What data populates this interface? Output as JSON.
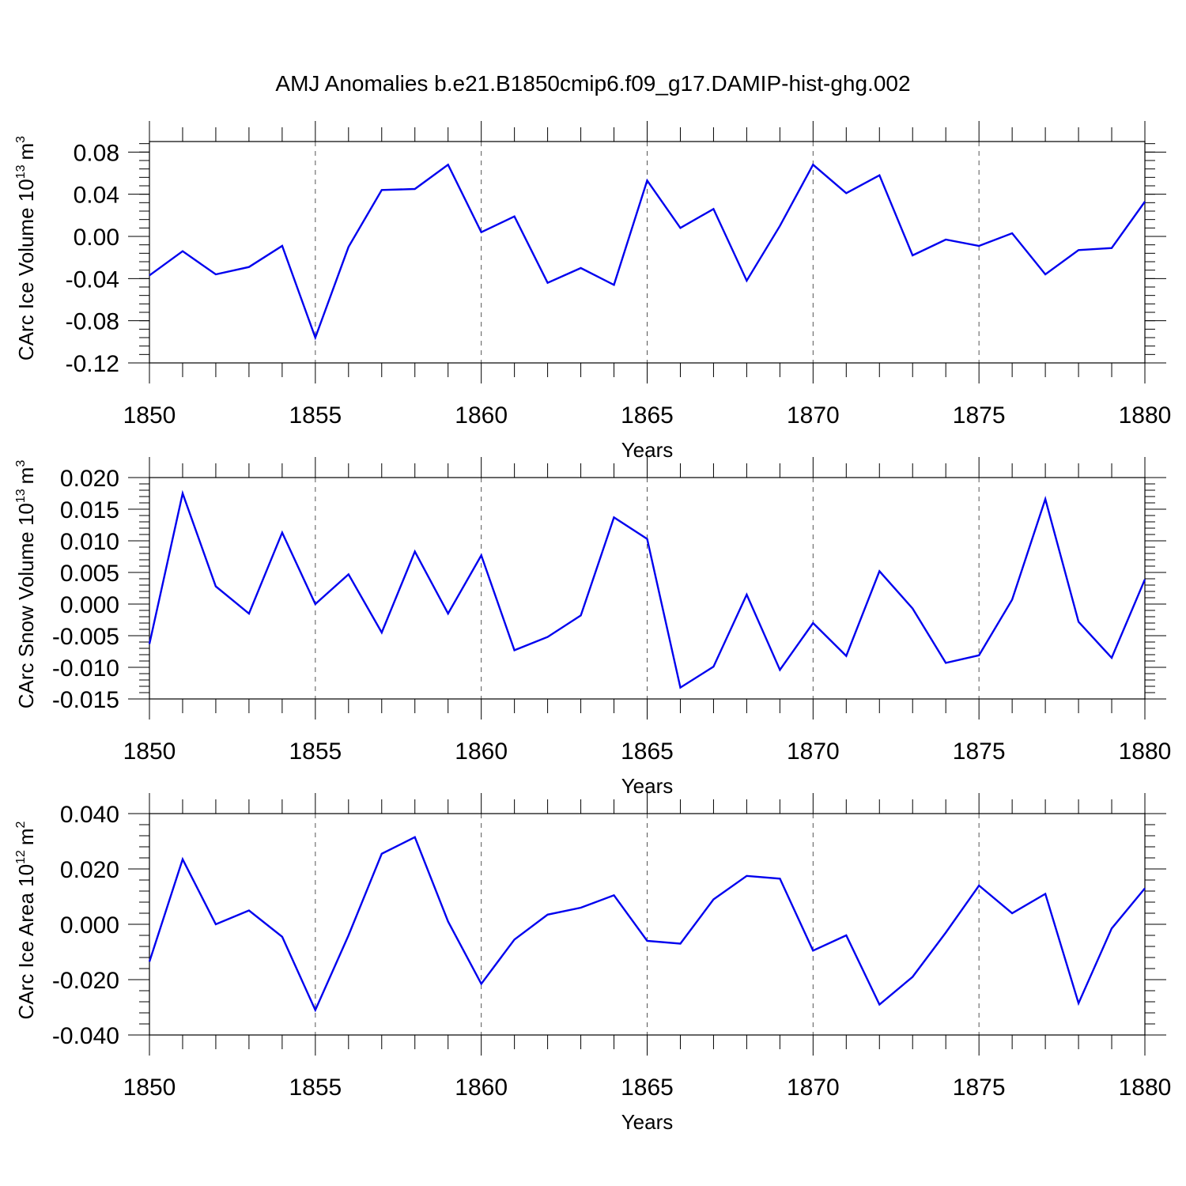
{
  "title": "AMJ Anomalies b.e21.B1850cmip6.f09_g17.DAMIP-hist-ghg.002",
  "chart_data": [
    {
      "type": "line",
      "ylabel_main": "CArc Ice Volume 10",
      "ylabel_exp": "13",
      "ylabel_unit": "m",
      "ylabel_unit_exp": "3",
      "xlabel": "Years",
      "xlim": [
        1850,
        1880
      ],
      "ylim": [
        -0.12,
        0.09
      ],
      "yticks": [
        -0.12,
        -0.08,
        -0.04,
        0.0,
        0.04,
        0.08
      ],
      "ytick_labels": [
        "-0.12",
        "-0.08",
        "-0.04",
        "0.00",
        "0.04",
        "0.08"
      ],
      "xticks": [
        1850,
        1855,
        1860,
        1865,
        1870,
        1875,
        1880
      ],
      "xtick_labels": [
        "1850",
        "1855",
        "1860",
        "1865",
        "1870",
        "1875",
        "1880"
      ],
      "line_color": "#0000ee",
      "x": [
        1850,
        1851,
        1852,
        1853,
        1854,
        1855,
        1856,
        1857,
        1858,
        1859,
        1860,
        1861,
        1862,
        1863,
        1864,
        1865,
        1866,
        1867,
        1868,
        1869,
        1870,
        1871,
        1872,
        1873,
        1874,
        1875,
        1876,
        1877,
        1878,
        1879,
        1880
      ],
      "values": [
        -0.037,
        -0.014,
        -0.036,
        -0.029,
        -0.009,
        -0.096,
        -0.01,
        0.044,
        0.045,
        0.068,
        0.004,
        0.019,
        -0.044,
        -0.03,
        -0.046,
        0.053,
        0.008,
        0.026,
        -0.042,
        0.01,
        0.068,
        0.041,
        0.058,
        -0.018,
        -0.003,
        -0.009,
        0.003,
        -0.036,
        -0.013,
        -0.011,
        0.033
      ]
    },
    {
      "type": "line",
      "ylabel_main": "CArc Snow Volume 10",
      "ylabel_exp": "13",
      "ylabel_unit": "m",
      "ylabel_unit_exp": "3",
      "xlabel": "Years",
      "xlim": [
        1850,
        1880
      ],
      "ylim": [
        -0.015,
        0.02
      ],
      "yticks": [
        -0.015,
        -0.01,
        -0.005,
        0.0,
        0.005,
        0.01,
        0.015,
        0.02
      ],
      "ytick_labels": [
        "-0.015",
        "-0.010",
        "-0.005",
        "0.000",
        "0.005",
        "0.010",
        "0.015",
        "0.020"
      ],
      "xticks": [
        1850,
        1855,
        1860,
        1865,
        1870,
        1875,
        1880
      ],
      "xtick_labels": [
        "1850",
        "1855",
        "1860",
        "1865",
        "1870",
        "1875",
        "1880"
      ],
      "line_color": "#0000ee",
      "x": [
        1850,
        1851,
        1852,
        1853,
        1854,
        1855,
        1856,
        1857,
        1858,
        1859,
        1860,
        1861,
        1862,
        1863,
        1864,
        1865,
        1866,
        1867,
        1868,
        1869,
        1870,
        1871,
        1872,
        1873,
        1874,
        1875,
        1876,
        1877,
        1878,
        1879,
        1880
      ],
      "values": [
        -0.0063,
        0.0175,
        0.0028,
        -0.0015,
        0.0113,
        0.0,
        0.0047,
        -0.0045,
        0.0083,
        -0.0015,
        0.0077,
        -0.0073,
        -0.0052,
        -0.0018,
        0.0137,
        0.0103,
        -0.0132,
        -0.0099,
        0.0015,
        -0.0104,
        -0.003,
        -0.0082,
        0.0052,
        -0.0007,
        -0.0093,
        -0.0081,
        0.0007,
        0.0166,
        -0.0028,
        -0.0085,
        0.0039
      ]
    },
    {
      "type": "line",
      "ylabel_main": "CArc Ice Area 10",
      "ylabel_exp": "12",
      "ylabel_unit": "m",
      "ylabel_unit_exp": "2",
      "xlabel": "Years",
      "xlim": [
        1850,
        1880
      ],
      "ylim": [
        -0.04,
        0.04
      ],
      "yticks": [
        -0.04,
        -0.02,
        0.0,
        0.02,
        0.04
      ],
      "ytick_labels": [
        "-0.040",
        "-0.020",
        "0.000",
        "0.020",
        "0.040"
      ],
      "xticks": [
        1850,
        1855,
        1860,
        1865,
        1870,
        1875,
        1880
      ],
      "xtick_labels": [
        "1850",
        "1855",
        "1860",
        "1865",
        "1870",
        "1875",
        "1880"
      ],
      "line_color": "#0000ee",
      "x": [
        1850,
        1851,
        1852,
        1853,
        1854,
        1855,
        1856,
        1857,
        1858,
        1859,
        1860,
        1861,
        1862,
        1863,
        1864,
        1865,
        1866,
        1867,
        1868,
        1869,
        1870,
        1871,
        1872,
        1873,
        1874,
        1875,
        1876,
        1877,
        1878,
        1879,
        1880
      ],
      "values": [
        -0.0135,
        0.0235,
        0.0,
        0.005,
        -0.0045,
        -0.031,
        -0.004,
        0.0255,
        0.0315,
        0.001,
        -0.0215,
        -0.0055,
        0.0035,
        0.006,
        0.0105,
        -0.006,
        -0.007,
        0.009,
        0.0175,
        0.0165,
        -0.0095,
        -0.004,
        -0.029,
        -0.019,
        -0.003,
        0.014,
        0.004,
        0.011,
        -0.0285,
        -0.0015,
        0.013
      ]
    }
  ]
}
